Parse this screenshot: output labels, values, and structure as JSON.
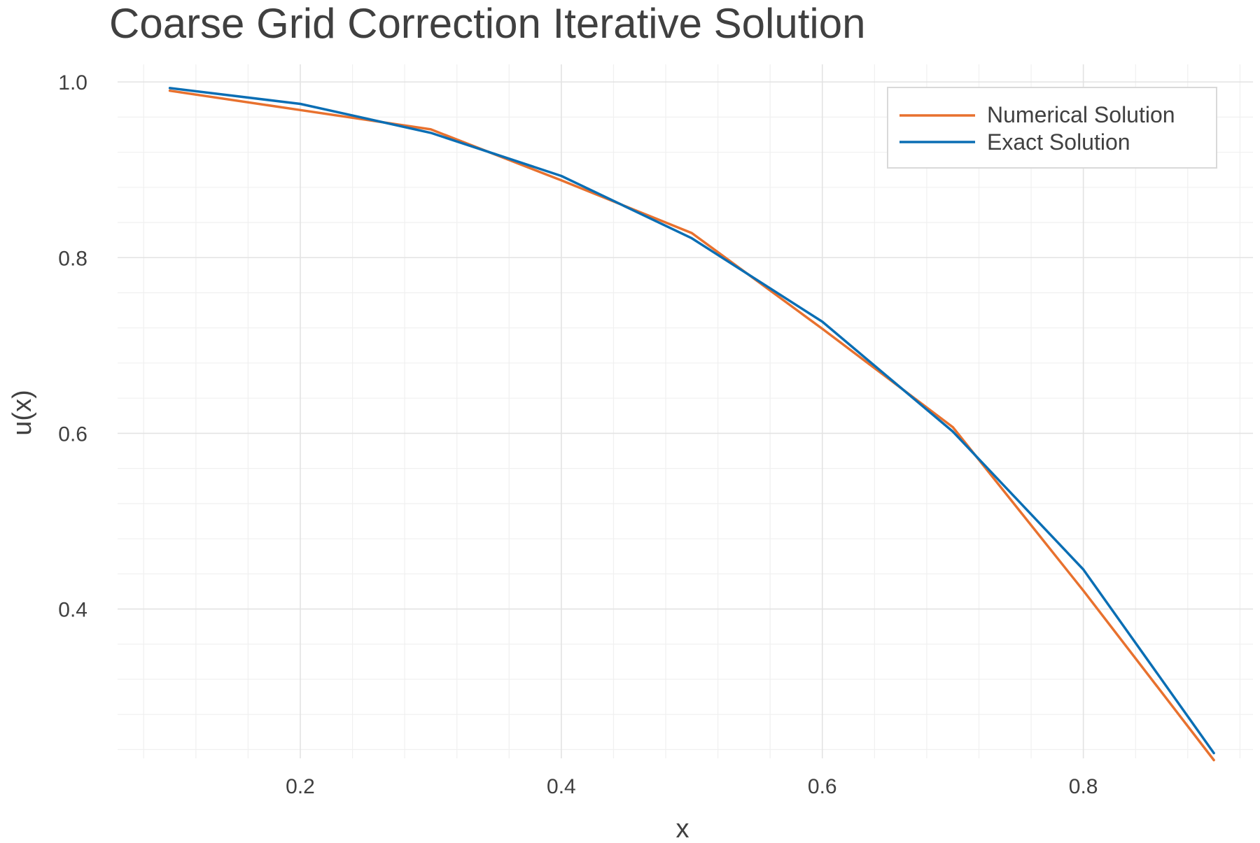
{
  "chart_data": {
    "type": "line",
    "title": "Coarse Grid Correction Iterative Solution",
    "xlabel": "x",
    "ylabel": "u(x)",
    "xlim": [
      0.06,
      0.93
    ],
    "ylim": [
      0.23,
      1.02
    ],
    "xticks": [
      0.2,
      0.4,
      0.6,
      0.8
    ],
    "xtick_labels": [
      "0.2",
      "0.4",
      "0.6",
      "0.8"
    ],
    "yticks": [
      0.4,
      0.6,
      0.8,
      1.0
    ],
    "ytick_labels": [
      "0.4",
      "0.6",
      "0.8",
      "1.0"
    ],
    "grid": true,
    "legend_position": "top-right",
    "x": [
      0.1,
      0.2,
      0.3,
      0.4,
      0.5,
      0.6,
      0.7,
      0.8,
      0.9
    ],
    "series": [
      {
        "name": "Numerical Solution",
        "color": "#E8712E",
        "values": [
          0.99,
          0.968,
          0.946,
          0.888,
          0.828,
          0.719,
          0.607,
          0.421,
          0.228
        ]
      },
      {
        "name": "Exact Solution",
        "color": "#0A6EB4",
        "values": [
          0.993,
          0.975,
          0.942,
          0.893,
          0.822,
          0.727,
          0.602,
          0.445,
          0.236
        ]
      }
    ]
  }
}
